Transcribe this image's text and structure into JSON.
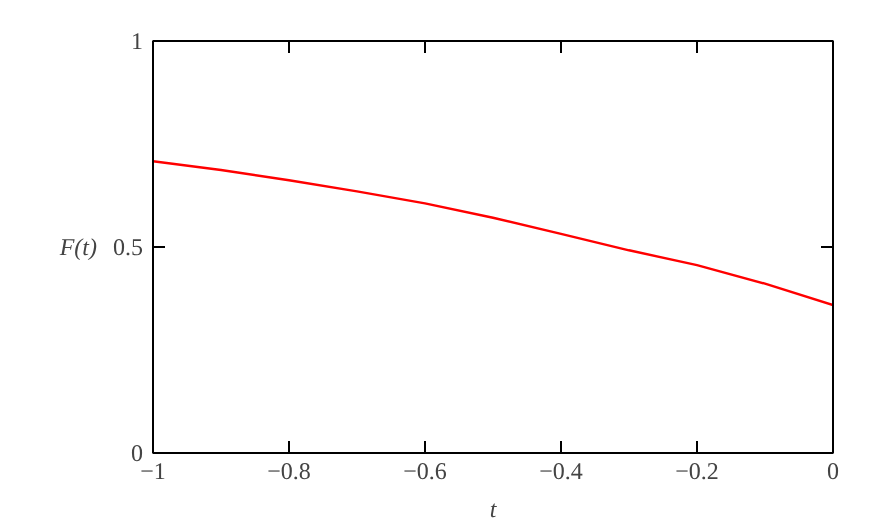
{
  "chart_data": {
    "type": "line",
    "xlabel": "t",
    "ylabel": "F(t)",
    "x": [
      -1,
      -0.9,
      -0.8,
      -0.7,
      -0.6,
      -0.5,
      -0.4,
      -0.3,
      -0.2,
      -0.1,
      0
    ],
    "series": [
      {
        "color": "#ff0000",
        "values": [
          0.708,
          0.687,
          0.662,
          0.635,
          0.606,
          0.571,
          0.532,
          0.492,
          0.456,
          0.411,
          0.359
        ]
      }
    ],
    "xlim": [
      -1,
      0
    ],
    "ylim": [
      0,
      1
    ],
    "xticks": [
      {
        "value": -1,
        "label": "−1"
      },
      {
        "value": -0.8,
        "label": "−0.8"
      },
      {
        "value": -0.6,
        "label": "−0.6"
      },
      {
        "value": -0.4,
        "label": "−0.4"
      },
      {
        "value": -0.2,
        "label": "−0.2"
      },
      0
    ],
    "yticks": [
      0,
      0.5,
      1
    ],
    "grid": false,
    "marker": "none",
    "line_style": "solid"
  }
}
